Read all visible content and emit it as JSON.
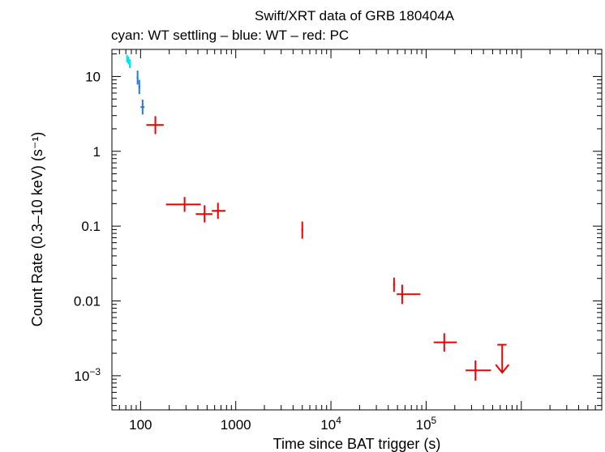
{
  "chart_data": {
    "type": "scatter",
    "title": "Swift/XRT data of GRB 180404A",
    "subtitle": "cyan: WT settling – blue: WT – red: PC",
    "xlabel": "Time since BAT trigger (s)",
    "ylabel": "Count Rate (0.3–10 keV) (s⁻¹)",
    "x_scale": "log",
    "y_scale": "log",
    "xlim": [
      50,
      7000000
    ],
    "ylim": [
      0.00035,
      23
    ],
    "x_ticks": [
      {
        "value": 100,
        "label": "100"
      },
      {
        "value": 1000,
        "label": "1000"
      },
      {
        "value": 10000,
        "base": "10",
        "exp": "4"
      },
      {
        "value": 100000,
        "base": "10",
        "exp": "5"
      }
    ],
    "y_ticks": [
      {
        "value": 10,
        "label": "10"
      },
      {
        "value": 1,
        "label": "1"
      },
      {
        "value": 0.1,
        "label": "0.1"
      },
      {
        "value": 0.01,
        "label": "0.01"
      },
      {
        "value": 0.001,
        "base": "10",
        "exp": "−3"
      }
    ],
    "grid": false,
    "series": [
      {
        "name": "WT settling",
        "color": "#00e5ee",
        "points": [
          {
            "x": 72,
            "xlo": 71,
            "xhi": 73,
            "y": 17.5,
            "ylo": 15.5,
            "yhi": 19.5
          },
          {
            "x": 74.5,
            "xlo": 73.5,
            "xhi": 75.5,
            "y": 16.5,
            "ylo": 14.5,
            "yhi": 18.5
          },
          {
            "x": 77,
            "xlo": 76,
            "xhi": 78,
            "y": 15.0,
            "ylo": 13.0,
            "yhi": 17.0
          }
        ]
      },
      {
        "name": "WT",
        "color": "#1e78f0",
        "points": [
          {
            "x": 93,
            "xlo": 91,
            "xhi": 95,
            "y": 9.6,
            "ylo": 7.8,
            "yhi": 12.0
          },
          {
            "x": 97,
            "xlo": 95,
            "xhi": 99,
            "y": 7.3,
            "ylo": 5.8,
            "yhi": 9.0
          },
          {
            "x": 105,
            "xlo": 100,
            "xhi": 110,
            "y": 3.9,
            "ylo": 3.1,
            "yhi": 4.9
          }
        ]
      },
      {
        "name": "PC",
        "color": "#ee0000",
        "points": [
          {
            "x": 143,
            "xlo": 115,
            "xhi": 175,
            "y": 2.25,
            "ylo": 1.7,
            "yhi": 2.95
          },
          {
            "x": 290,
            "xlo": 185,
            "xhi": 430,
            "y": 0.195,
            "ylo": 0.155,
            "yhi": 0.245
          },
          {
            "x": 470,
            "xlo": 380,
            "xhi": 570,
            "y": 0.145,
            "ylo": 0.112,
            "yhi": 0.19
          },
          {
            "x": 650,
            "xlo": 560,
            "xhi": 780,
            "y": 0.16,
            "ylo": 0.125,
            "yhi": 0.205
          },
          {
            "x": 5000,
            "xlo": 4900,
            "xhi": 5100,
            "y": 0.088,
            "ylo": 0.068,
            "yhi": 0.115
          },
          {
            "x": 46000,
            "xlo": 45000,
            "xhi": 47000,
            "y": 0.0165,
            "ylo": 0.0132,
            "yhi": 0.0205
          },
          {
            "x": 56000,
            "xlo": 49000,
            "xhi": 87000,
            "y": 0.0123,
            "ylo": 0.0091,
            "yhi": 0.0165
          },
          {
            "x": 155000,
            "xlo": 120000,
            "xhi": 210000,
            "y": 0.0028,
            "ylo": 0.0021,
            "yhi": 0.0037
          },
          {
            "x": 330000,
            "xlo": 260000,
            "xhi": 480000,
            "y": 0.00118,
            "ylo": 0.00086,
            "yhi": 0.0016
          }
        ]
      }
    ],
    "upper_limits": [
      {
        "series": "PC",
        "color": "#ee0000",
        "x": 630000,
        "xlo": 560000,
        "xhi": 700000,
        "y": 0.0026,
        "arrow_to": 0.0011
      }
    ]
  }
}
